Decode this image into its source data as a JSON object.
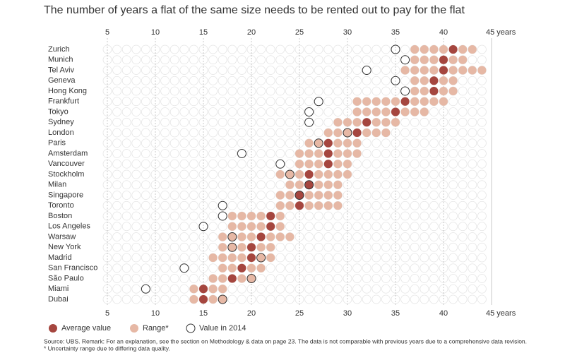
{
  "chart_data": {
    "type": "dot-range",
    "title": "The number of years a flat of the same size needs to be rented out to pay for the flat",
    "categories": [
      "Zurich",
      "Munich",
      "Tel Aviv",
      "Geneva",
      "Hong Kong",
      "Frankfurt",
      "Tokyo",
      "Sydney",
      "London",
      "Paris",
      "Amsterdam",
      "Vancouver",
      "Stockholm",
      "Milan",
      "Singapore",
      "Toronto",
      "Boston",
      "Los Angeles",
      "Warsaw",
      "New York",
      "Madrid",
      "San Francisco",
      "São Paulo",
      "Miami",
      "Dubai"
    ],
    "series": [
      {
        "name": "Range*",
        "color": "#e6b8a5",
        "low": [
          37,
          37,
          36,
          37,
          37,
          31,
          31,
          29,
          28,
          26,
          25,
          25,
          23,
          24,
          23,
          23,
          18,
          18,
          17,
          17,
          16,
          17,
          16,
          14,
          14
        ],
        "high": [
          43,
          42,
          44,
          41,
          41,
          40,
          38,
          35,
          34,
          31,
          31,
          30,
          30,
          29,
          29,
          29,
          23,
          23,
          24,
          22,
          22,
          21,
          20,
          17,
          17
        ]
      },
      {
        "name": "Average value",
        "color": "#a5463f",
        "values": [
          41,
          40,
          40,
          39,
          39,
          36,
          35,
          32,
          31,
          28,
          28,
          28,
          26,
          26,
          25,
          25,
          22,
          22,
          21,
          20,
          20,
          19,
          18,
          15,
          15
        ]
      },
      {
        "name": "Value in 2014",
        "color": "#333333",
        "values": [
          35,
          36,
          32,
          35,
          36,
          27,
          26,
          26,
          30,
          27,
          19,
          23,
          24,
          26,
          25,
          17,
          17,
          15,
          18,
          18,
          21,
          13,
          20,
          9,
          17
        ]
      }
    ],
    "xlim": [
      5,
      45
    ],
    "xticks": [
      5,
      10,
      15,
      20,
      25,
      30,
      35,
      40,
      {
        "value": 45,
        "label": "45 years"
      }
    ],
    "grid": true,
    "notes": [
      "Source: UBS. Remark: For an explanation, see the section on Methodology & data on page 23. The data is not comparable with previous years due to a comprehensive data revision.",
      "* Uncertainty range due to differing data quality."
    ]
  }
}
